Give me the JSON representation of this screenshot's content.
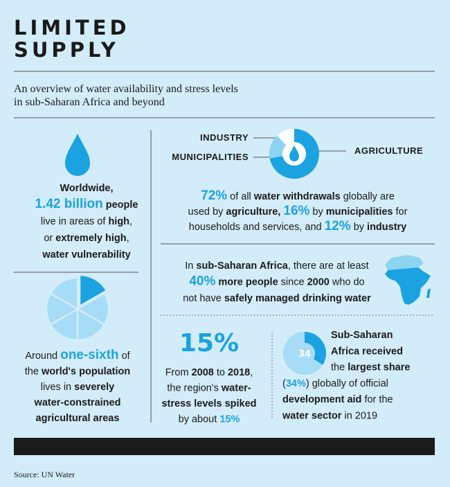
{
  "title": [
    "LIMITED",
    "SUPPLY"
  ],
  "subtitle": [
    "An overview of water availability and stress levels",
    "in sub-Saharan Africa and beyond"
  ],
  "vulnerability": {
    "lines": [
      [
        "Worldwide,"
      ],
      [
        "1.42 billion",
        " people"
      ],
      [
        "live in areas of ",
        "high",
        ","
      ],
      [
        "or ",
        "extremely high",
        ","
      ],
      [
        "water vulnerability"
      ]
    ]
  },
  "agriculture_areas": {
    "lines": [
      [
        "Around ",
        "one-sixth",
        " of"
      ],
      [
        "the ",
        "world's population"
      ],
      [
        "lives in ",
        "severely"
      ],
      [
        "water-constrained"
      ],
      [
        "agricultural areas"
      ]
    ]
  },
  "water_use": {
    "categories": [
      "AGRICULTURE",
      "MUNICIPALITIES",
      "INDUSTRY"
    ],
    "values": [
      72,
      16,
      12
    ],
    "lines": [
      [
        "72%",
        " of all ",
        "water withdrawals",
        " globally are"
      ],
      [
        "used by ",
        "agriculture, ",
        "16%",
        " by ",
        "municipalities",
        " for"
      ],
      [
        "households and services, and ",
        "12%",
        " by ",
        "industry"
      ]
    ]
  },
  "drinking_water": {
    "lines": [
      [
        "In ",
        "sub-Saharan Africa",
        ", there are at least"
      ],
      [
        "40%",
        " more people",
        " since ",
        "2000",
        " who do"
      ],
      [
        "not have ",
        "safely managed drinking water"
      ]
    ]
  },
  "water_stress": {
    "headline": "15%",
    "lines": [
      [
        "From ",
        "2008",
        " to ",
        "2018",
        ","
      ],
      [
        "the region's ",
        "water-"
      ],
      [
        "stress levels spiked"
      ],
      [
        "by about ",
        "15%"
      ]
    ]
  },
  "aid": {
    "value": 34,
    "lines": [
      [
        "Sub-Saharan"
      ],
      [
        "Africa received"
      ],
      [
        "the ",
        "largest share"
      ],
      [
        "(",
        "34%",
        ") globally of official"
      ],
      [
        "development aid",
        " for the"
      ],
      [
        "water sector",
        " in 2019"
      ]
    ]
  },
  "source": "Source: UN Water"
}
